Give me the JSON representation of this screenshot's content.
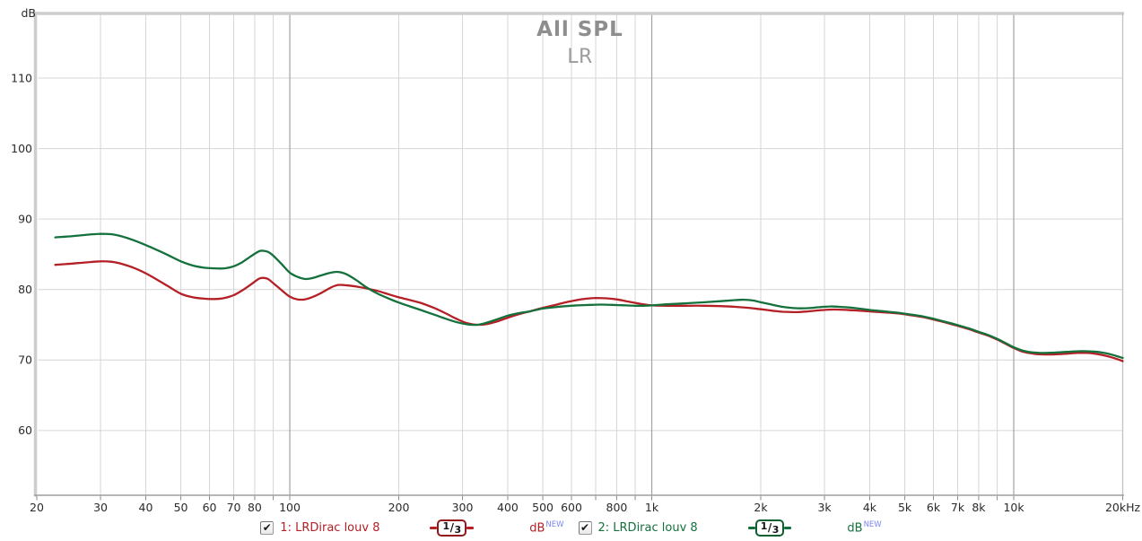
{
  "chart_data": {
    "type": "line",
    "title": "All SPL",
    "subtitle": "LR",
    "x_axis": {
      "scale": "log",
      "min": 20,
      "max": 20000,
      "unit": "Hz",
      "labels": [
        {
          "f": 20,
          "text": "20"
        },
        {
          "f": 30,
          "text": "30"
        },
        {
          "f": 40,
          "text": "40"
        },
        {
          "f": 50,
          "text": "50"
        },
        {
          "f": 60,
          "text": "60"
        },
        {
          "f": 70,
          "text": "70"
        },
        {
          "f": 80,
          "text": "80"
        },
        {
          "f": 100,
          "text": "100"
        },
        {
          "f": 200,
          "text": "200"
        },
        {
          "f": 300,
          "text": "300"
        },
        {
          "f": 400,
          "text": "400"
        },
        {
          "f": 500,
          "text": "500"
        },
        {
          "f": 600,
          "text": "600"
        },
        {
          "f": 800,
          "text": "800"
        },
        {
          "f": 1000,
          "text": "1k"
        },
        {
          "f": 2000,
          "text": "2k"
        },
        {
          "f": 3000,
          "text": "3k"
        },
        {
          "f": 4000,
          "text": "4k"
        },
        {
          "f": 5000,
          "text": "5k"
        },
        {
          "f": 6000,
          "text": "6k"
        },
        {
          "f": 7000,
          "text": "7k"
        },
        {
          "f": 8000,
          "text": "8k"
        },
        {
          "f": 10000,
          "text": "10k"
        },
        {
          "f": 20000,
          "text": "20kHz"
        }
      ],
      "gridlines_minor": [
        30,
        40,
        50,
        60,
        70,
        80,
        90,
        200,
        300,
        400,
        500,
        600,
        700,
        800,
        900,
        2000,
        3000,
        4000,
        5000,
        6000,
        7000,
        8000,
        9000
      ],
      "gridlines_major": [
        100,
        1000,
        10000
      ],
      "tick_marks": [
        20,
        30,
        40,
        50,
        60,
        70,
        80,
        90,
        100,
        200,
        300,
        400,
        500,
        600,
        700,
        800,
        900,
        1000,
        2000,
        3000,
        4000,
        5000,
        6000,
        7000,
        8000,
        9000,
        10000,
        20000
      ]
    },
    "y_axis": {
      "unit": "dB",
      "ticks": [
        110,
        100,
        90,
        80,
        70,
        60
      ],
      "view_top_db": 119.3,
      "view_bottom_db": 50.8,
      "grid": true
    },
    "legend_position": "bottom",
    "series": [
      {
        "id": 1,
        "name": "1: LRDirac louv 8",
        "color": "#b42026",
        "badge_border": "#8f1a1a",
        "smoothing": "1/3",
        "unit": "dB",
        "unit_tag": "NEW",
        "enabled": true,
        "points": [
          [
            22.5,
            83.5
          ],
          [
            24,
            83.6
          ],
          [
            26,
            83.75
          ],
          [
            28,
            83.9
          ],
          [
            30,
            84
          ],
          [
            32,
            83.95
          ],
          [
            34,
            83.7
          ],
          [
            37,
            83.1
          ],
          [
            40,
            82.3
          ],
          [
            43,
            81.4
          ],
          [
            46,
            80.5
          ],
          [
            50,
            79.4
          ],
          [
            54,
            78.9
          ],
          [
            58,
            78.7
          ],
          [
            62,
            78.65
          ],
          [
            66,
            78.8
          ],
          [
            70,
            79.2
          ],
          [
            74,
            79.9
          ],
          [
            78,
            80.7
          ],
          [
            82,
            81.5
          ],
          [
            84,
            81.65
          ],
          [
            87,
            81.5
          ],
          [
            90,
            80.9
          ],
          [
            95,
            79.9
          ],
          [
            100,
            79
          ],
          [
            105,
            78.6
          ],
          [
            110,
            78.6
          ],
          [
            115,
            78.9
          ],
          [
            122,
            79.5
          ],
          [
            130,
            80.3
          ],
          [
            136,
            80.65
          ],
          [
            143,
            80.6
          ],
          [
            152,
            80.45
          ],
          [
            163,
            80.15
          ],
          [
            175,
            79.8
          ],
          [
            188,
            79.3
          ],
          [
            200,
            78.9
          ],
          [
            215,
            78.5
          ],
          [
            230,
            78.1
          ],
          [
            250,
            77.4
          ],
          [
            270,
            76.6
          ],
          [
            290,
            75.8
          ],
          [
            310,
            75.2
          ],
          [
            330,
            75
          ],
          [
            350,
            75.1
          ],
          [
            375,
            75.5
          ],
          [
            400,
            76
          ],
          [
            430,
            76.5
          ],
          [
            460,
            76.9
          ],
          [
            500,
            77.4
          ],
          [
            540,
            77.8
          ],
          [
            580,
            78.2
          ],
          [
            620,
            78.5
          ],
          [
            660,
            78.7
          ],
          [
            700,
            78.8
          ],
          [
            750,
            78.75
          ],
          [
            800,
            78.6
          ],
          [
            850,
            78.35
          ],
          [
            900,
            78.1
          ],
          [
            950,
            77.9
          ],
          [
            1000,
            77.75
          ],
          [
            1100,
            77.7
          ],
          [
            1250,
            77.7
          ],
          [
            1400,
            77.7
          ],
          [
            1550,
            77.65
          ],
          [
            1700,
            77.55
          ],
          [
            1850,
            77.4
          ],
          [
            2000,
            77.2
          ],
          [
            2150,
            77
          ],
          [
            2300,
            76.85
          ],
          [
            2500,
            76.8
          ],
          [
            2700,
            76.9
          ],
          [
            2900,
            77.05
          ],
          [
            3100,
            77.15
          ],
          [
            3300,
            77.15
          ],
          [
            3600,
            77.05
          ],
          [
            4000,
            76.9
          ],
          [
            4400,
            76.75
          ],
          [
            4800,
            76.6
          ],
          [
            5200,
            76.35
          ],
          [
            5600,
            76.1
          ],
          [
            6000,
            75.75
          ],
          [
            6500,
            75.3
          ],
          [
            7000,
            74.85
          ],
          [
            7500,
            74.4
          ],
          [
            8000,
            73.9
          ],
          [
            8500,
            73.45
          ],
          [
            9000,
            72.9
          ],
          [
            9500,
            72.3
          ],
          [
            10000,
            71.7
          ],
          [
            10500,
            71.25
          ],
          [
            11000,
            71
          ],
          [
            11500,
            70.85
          ],
          [
            12000,
            70.8
          ],
          [
            13000,
            70.8
          ],
          [
            14000,
            70.9
          ],
          [
            15000,
            71
          ],
          [
            16000,
            71
          ],
          [
            17000,
            70.85
          ],
          [
            18000,
            70.6
          ],
          [
            19000,
            70.25
          ],
          [
            20000,
            69.85
          ]
        ]
      },
      {
        "id": 2,
        "name": "2: LRDirac louv 8",
        "color": "#14713c",
        "badge_border": "#0e5e31",
        "smoothing": "1/3",
        "unit": "dB",
        "unit_tag": "NEW",
        "enabled": true,
        "points": [
          [
            22.5,
            87.4
          ],
          [
            24,
            87.5
          ],
          [
            26,
            87.65
          ],
          [
            28,
            87.8
          ],
          [
            30,
            87.9
          ],
          [
            32,
            87.85
          ],
          [
            34,
            87.6
          ],
          [
            37,
            87
          ],
          [
            40,
            86.3
          ],
          [
            43,
            85.6
          ],
          [
            46,
            84.9
          ],
          [
            50,
            84
          ],
          [
            54,
            83.4
          ],
          [
            58,
            83.1
          ],
          [
            62,
            83
          ],
          [
            66,
            83
          ],
          [
            70,
            83.3
          ],
          [
            74,
            83.9
          ],
          [
            78,
            84.7
          ],
          [
            82,
            85.4
          ],
          [
            84,
            85.5
          ],
          [
            87,
            85.35
          ],
          [
            90,
            84.8
          ],
          [
            95,
            83.6
          ],
          [
            100,
            82.4
          ],
          [
            105,
            81.8
          ],
          [
            110,
            81.5
          ],
          [
            115,
            81.6
          ],
          [
            122,
            82
          ],
          [
            130,
            82.4
          ],
          [
            136,
            82.5
          ],
          [
            143,
            82.2
          ],
          [
            152,
            81.4
          ],
          [
            163,
            80.3
          ],
          [
            175,
            79.4
          ],
          [
            188,
            78.7
          ],
          [
            200,
            78.15
          ],
          [
            215,
            77.6
          ],
          [
            230,
            77.1
          ],
          [
            250,
            76.45
          ],
          [
            270,
            75.85
          ],
          [
            290,
            75.35
          ],
          [
            310,
            75.05
          ],
          [
            330,
            75
          ],
          [
            350,
            75.3
          ],
          [
            375,
            75.8
          ],
          [
            400,
            76.3
          ],
          [
            430,
            76.65
          ],
          [
            460,
            76.9
          ],
          [
            500,
            77.3
          ],
          [
            540,
            77.5
          ],
          [
            580,
            77.65
          ],
          [
            620,
            77.75
          ],
          [
            660,
            77.8
          ],
          [
            700,
            77.85
          ],
          [
            750,
            77.85
          ],
          [
            800,
            77.8
          ],
          [
            850,
            77.75
          ],
          [
            900,
            77.7
          ],
          [
            950,
            77.7
          ],
          [
            1000,
            77.75
          ],
          [
            1100,
            77.9
          ],
          [
            1250,
            78.05
          ],
          [
            1400,
            78.2
          ],
          [
            1550,
            78.35
          ],
          [
            1700,
            78.5
          ],
          [
            1800,
            78.55
          ],
          [
            1900,
            78.45
          ],
          [
            2000,
            78.2
          ],
          [
            2150,
            77.85
          ],
          [
            2300,
            77.55
          ],
          [
            2500,
            77.35
          ],
          [
            2700,
            77.35
          ],
          [
            2900,
            77.5
          ],
          [
            3100,
            77.6
          ],
          [
            3300,
            77.55
          ],
          [
            3600,
            77.4
          ],
          [
            4000,
            77.1
          ],
          [
            4400,
            76.9
          ],
          [
            4800,
            76.7
          ],
          [
            5200,
            76.45
          ],
          [
            5600,
            76.2
          ],
          [
            6000,
            75.85
          ],
          [
            6500,
            75.4
          ],
          [
            7000,
            74.95
          ],
          [
            7500,
            74.5
          ],
          [
            8000,
            74
          ],
          [
            8500,
            73.55
          ],
          [
            9000,
            73
          ],
          [
            9500,
            72.4
          ],
          [
            10000,
            71.8
          ],
          [
            10500,
            71.4
          ],
          [
            11000,
            71.15
          ],
          [
            11500,
            71.05
          ],
          [
            12000,
            71
          ],
          [
            13000,
            71.05
          ],
          [
            14000,
            71.15
          ],
          [
            15000,
            71.25
          ],
          [
            16000,
            71.25
          ],
          [
            17000,
            71.15
          ],
          [
            18000,
            70.95
          ],
          [
            19000,
            70.65
          ],
          [
            20000,
            70.3
          ]
        ]
      }
    ]
  },
  "legend": {
    "items": [
      {
        "label": "1: LRDirac louv 8",
        "smoothing": "1/3",
        "unit": "dB",
        "unit_tag": "NEW",
        "checked": true
      },
      {
        "label": "2: LRDirac louv 8",
        "smoothing": "1/3",
        "unit": "dB",
        "unit_tag": "NEW",
        "checked": true
      }
    ],
    "check_glyph": "✔",
    "new_tag_color": "#7b86f5"
  },
  "colors": {
    "trace1": "#b42026",
    "trace2": "#14713c",
    "grid_minor": "#d6d6d6",
    "grid_major": "#a3a3a3",
    "axis_text": "#2b2b2b",
    "frame": "#cdcdcd",
    "axis_line": "#9e9e9e",
    "title": "#8e8e8e",
    "subtitle": "#9c9c9c"
  }
}
